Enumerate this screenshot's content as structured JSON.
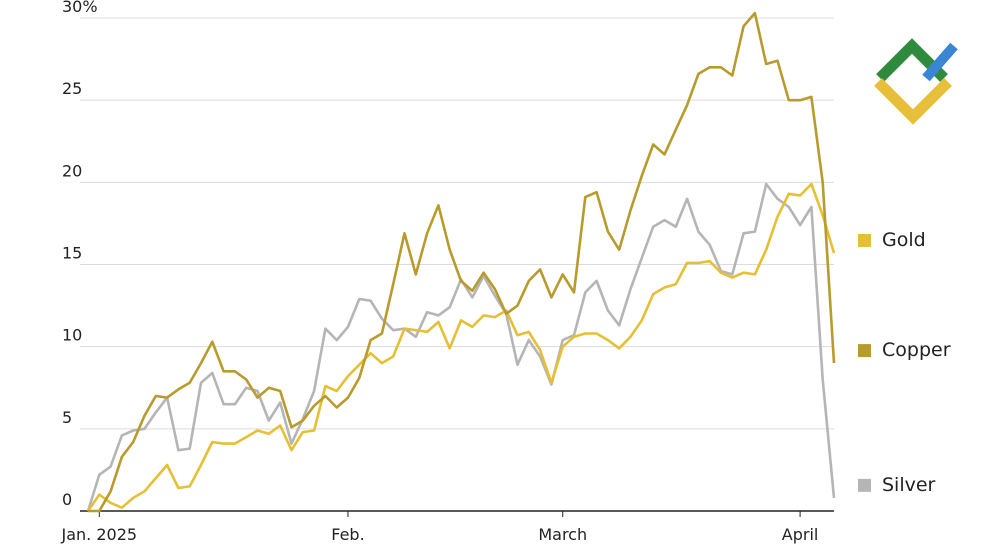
{
  "chart_data": {
    "type": "line",
    "categories": [
      null,
      "Jan. 2025",
      null,
      null,
      null,
      null,
      null,
      null,
      null,
      null,
      null,
      null,
      null,
      null,
      null,
      null,
      null,
      null,
      null,
      null,
      null,
      null,
      null,
      "Feb.",
      null,
      null,
      null,
      null,
      null,
      null,
      null,
      null,
      null,
      null,
      null,
      null,
      null,
      null,
      null,
      null,
      null,
      null,
      "March",
      null,
      null,
      null,
      null,
      null,
      null,
      null,
      null,
      null,
      null,
      null,
      null,
      null,
      null,
      null,
      null,
      null,
      null,
      null,
      null,
      "April",
      null,
      null,
      null
    ],
    "series": [
      {
        "name": "Gold",
        "color": "#e6bf35",
        "values": [
          0,
          1,
          0.5,
          0.2,
          0.8,
          1.2,
          2,
          2.8,
          1.4,
          1.5,
          2.8,
          4.2,
          4.1,
          4.1,
          4.5,
          4.9,
          4.7,
          5.2,
          3.7,
          4.8,
          4.9,
          7.6,
          7.3,
          8.2,
          8.9,
          9.6,
          9.0,
          9.4,
          11.1,
          11.0,
          10.9,
          11.5,
          9.9,
          11.6,
          11.2,
          11.9,
          11.8,
          12.2,
          10.7,
          10.9,
          9.8,
          7.8,
          10.0,
          10.6,
          10.8,
          10.8,
          10.4,
          9.9,
          10.6,
          11.6,
          13.2,
          13.6,
          13.8,
          15.1,
          15.1,
          15.2,
          14.5,
          14.2,
          14.5,
          14.4,
          15.9,
          17.9,
          19.3,
          19.2,
          19.9,
          18.0,
          15.7
        ]
      },
      {
        "name": "Copper",
        "color": "#b89b2c",
        "values": [
          0,
          0,
          1.2,
          3.3,
          4.2,
          5.8,
          7.0,
          6.9,
          7.4,
          7.8,
          9.0,
          10.3,
          8.5,
          8.5,
          8.0,
          6.9,
          7.5,
          7.3,
          5.1,
          5.5,
          6.4,
          7.0,
          6.3,
          6.9,
          8.1,
          10.4,
          10.8,
          13.8,
          16.9,
          14.4,
          16.9,
          18.6,
          15.9,
          14.0,
          13.4,
          14.5,
          13.5,
          12.0,
          12.5,
          14.0,
          14.7,
          13.0,
          14.4,
          13.3,
          19.1,
          19.4,
          17.0,
          15.9,
          18.3,
          20.4,
          22.3,
          21.7,
          23.2,
          24.7,
          26.6,
          27.0,
          27.0,
          26.5,
          29.5,
          30.3,
          27.2,
          27.4,
          25.0,
          25.0,
          25.2,
          20.0,
          9.0
        ]
      },
      {
        "name": "Silver",
        "color": "#b5b5b5",
        "values": [
          0,
          2.2,
          2.7,
          4.6,
          4.9,
          5.0,
          6.0,
          6.9,
          3.7,
          3.8,
          7.8,
          8.4,
          6.5,
          6.5,
          7.5,
          7.3,
          5.5,
          6.6,
          4.1,
          5.6,
          7.3,
          11.1,
          10.4,
          11.2,
          12.9,
          12.8,
          11.7,
          11.0,
          11.1,
          10.6,
          12.1,
          11.9,
          12.4,
          14.1,
          13.0,
          14.3,
          13.1,
          12.0,
          8.9,
          10.4,
          9.4,
          7.7,
          10.4,
          10.7,
          13.3,
          14.0,
          12.2,
          11.3,
          13.5,
          15.4,
          17.3,
          17.7,
          17.3,
          19.0,
          17.0,
          16.2,
          14.6,
          14.4,
          16.9,
          17.0,
          19.9,
          19.0,
          18.5,
          17.4,
          18.5,
          8.0,
          0.8
        ]
      }
    ],
    "ylim": [
      0,
      30
    ],
    "yticks": [
      0,
      5,
      10,
      15,
      20,
      25,
      {
        "value": 30,
        "label": "30%"
      }
    ],
    "grid": true,
    "legend": "right"
  }
}
